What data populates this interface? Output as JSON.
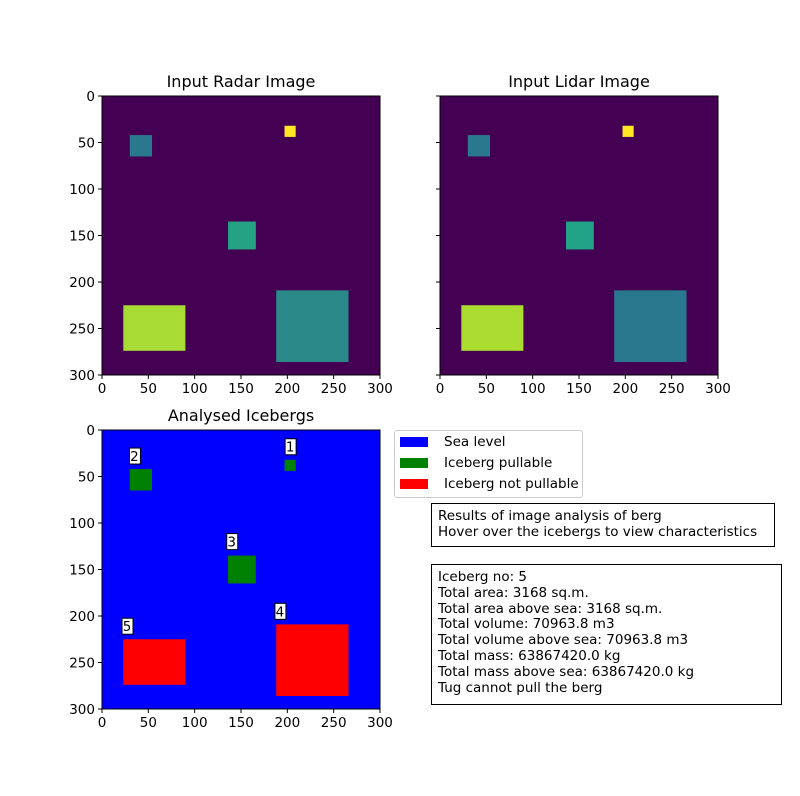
{
  "chart_data": [
    {
      "type": "heatmap",
      "title": "Input Radar Image",
      "xlim": [
        0,
        300
      ],
      "ylim": [
        300,
        0
      ],
      "xticks": [
        "0",
        "50",
        "100",
        "150",
        "200",
        "250",
        "300"
      ],
      "yticks": [
        "0",
        "50",
        "100",
        "150",
        "200",
        "250",
        "300"
      ],
      "background_color": "#440154",
      "regions": [
        {
          "x": [
            30,
            54
          ],
          "y": [
            42,
            65
          ],
          "color": "#2a788e"
        },
        {
          "x": [
            197,
            209
          ],
          "y": [
            32,
            44
          ],
          "color": "#fde725"
        },
        {
          "x": [
            136,
            166
          ],
          "y": [
            135,
            165
          ],
          "color": "#25a284"
        },
        {
          "x": [
            23,
            90
          ],
          "y": [
            225,
            274
          ],
          "color": "#a8db34"
        },
        {
          "x": [
            188,
            266
          ],
          "y": [
            209,
            286
          ],
          "color": "#2a8a8a"
        }
      ]
    },
    {
      "type": "heatmap",
      "title": "Input Lidar Image",
      "xlim": [
        0,
        300
      ],
      "ylim": [
        300,
        0
      ],
      "xticks": [
        "0",
        "50",
        "100",
        "150",
        "200",
        "250",
        "300"
      ],
      "yticks": [],
      "background_color": "#440154",
      "regions": [
        {
          "x": [
            30,
            54
          ],
          "y": [
            42,
            65
          ],
          "color": "#2a788e"
        },
        {
          "x": [
            197,
            209
          ],
          "y": [
            32,
            44
          ],
          "color": "#fde725"
        },
        {
          "x": [
            136,
            166
          ],
          "y": [
            135,
            165
          ],
          "color": "#20a386"
        },
        {
          "x": [
            23,
            90
          ],
          "y": [
            225,
            274
          ],
          "color": "#addc30"
        },
        {
          "x": [
            188,
            266
          ],
          "y": [
            209,
            286
          ],
          "color": "#2a788e"
        }
      ]
    },
    {
      "type": "heatmap",
      "title": "Analysed Icebergs",
      "xlim": [
        0,
        300
      ],
      "ylim": [
        300,
        0
      ],
      "xticks": [
        "0",
        "50",
        "100",
        "150",
        "200",
        "250",
        "300"
      ],
      "yticks": [
        "0",
        "50",
        "100",
        "150",
        "200",
        "250",
        "300"
      ],
      "background_color": "#0000ff",
      "regions": [
        {
          "x": [
            197,
            209
          ],
          "y": [
            32,
            44
          ],
          "color": "#008000",
          "label": "1",
          "label_at": [
            203,
            18
          ]
        },
        {
          "x": [
            30,
            54
          ],
          "y": [
            42,
            65
          ],
          "color": "#008000",
          "label": "2",
          "label_at": [
            35,
            28
          ]
        },
        {
          "x": [
            136,
            166
          ],
          "y": [
            135,
            165
          ],
          "color": "#008000",
          "label": "3",
          "label_at": [
            140,
            120
          ]
        },
        {
          "x": [
            188,
            266
          ],
          "y": [
            209,
            286
          ],
          "color": "#ff0000",
          "label": "4",
          "label_at": [
            192,
            195
          ]
        },
        {
          "x": [
            23,
            90
          ],
          "y": [
            225,
            274
          ],
          "color": "#ff0000",
          "label": "5",
          "label_at": [
            27,
            211
          ]
        }
      ],
      "legend": {
        "placement": "right",
        "entries": [
          {
            "label": "Sea level",
            "color": "#0000ff"
          },
          {
            "label": "Iceberg pullable",
            "color": "#008000"
          },
          {
            "label": "Iceberg not pullable",
            "color": "#ff0000"
          }
        ]
      }
    }
  ],
  "info_box": "Results of image analysis of berg\nHover over the icebergs to view characteristics",
  "details_box": "Iceberg no: 5\nTotal area: 3168 sq.m.\nTotal area above sea: 3168 sq.m.\nTotal volume: 70963.8 m3\nTotal volume above sea: 70963.8 m3\nTotal mass: 63867420.0 kg\nTotal mass above sea: 63867420.0 kg\nTug cannot pull the berg"
}
